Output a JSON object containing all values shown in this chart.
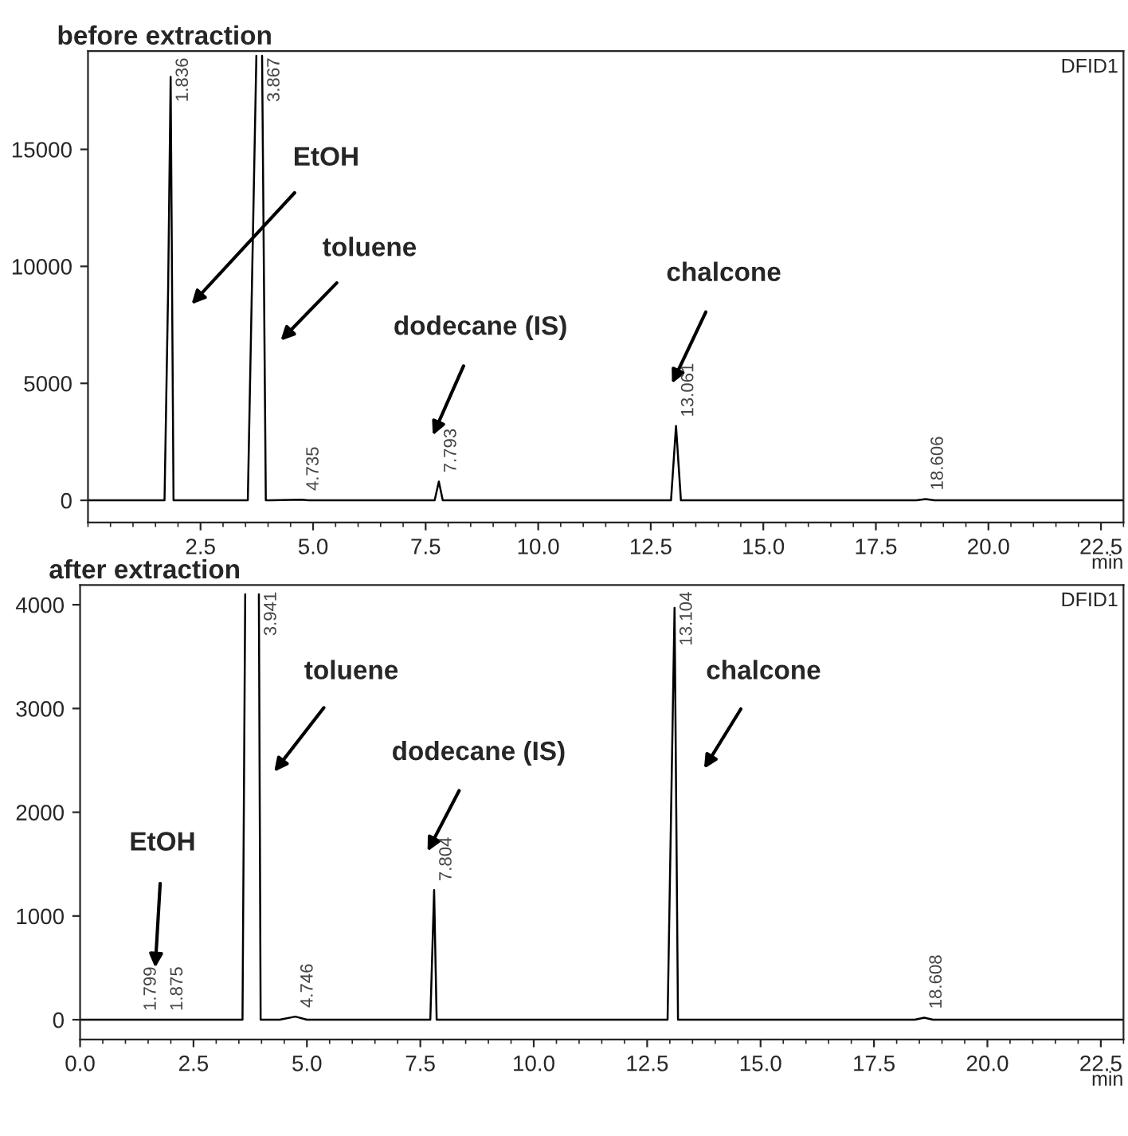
{
  "chart_data": [
    {
      "type": "line",
      "title": "before extraction",
      "xlabel": "min",
      "color": "#000000",
      "x": [
        0,
        1.7,
        1.78,
        1.836,
        1.9,
        2.0,
        3.55,
        3.74,
        3.75,
        3.85,
        3.867,
        3.95,
        4.05,
        4.735,
        4.9,
        7.7,
        7.793,
        7.88,
        12.8,
        12.95,
        13.061,
        13.17,
        13.3,
        18.4,
        18.606,
        18.8,
        23
      ],
      "values": [
        0,
        0,
        9000,
        18100,
        0,
        0,
        0,
        19000,
        null,
        null,
        19000,
        0,
        0,
        30,
        0,
        0,
        800,
        0,
        0,
        0,
        3180,
        0,
        0,
        0,
        50,
        0,
        0
      ],
      "xlim": [
        0,
        23
      ],
      "ylim": [
        -950,
        19200
      ],
      "xticks": [
        {
          "value": 2.5,
          "label": "2.5"
        },
        {
          "value": 5,
          "label": "5.0"
        },
        {
          "value": 7.5,
          "label": "7.5"
        },
        {
          "value": 10,
          "label": "10.0"
        },
        {
          "value": 12.5,
          "label": "12.5"
        },
        {
          "value": 15,
          "label": "15.0"
        },
        {
          "value": 17.5,
          "label": "17.5"
        },
        {
          "value": 20,
          "label": "20.0"
        },
        {
          "value": 22.5,
          "label": "22.5"
        }
      ],
      "yticks": [
        0,
        5000,
        10000,
        15000
      ],
      "grid": false,
      "annotations": [
        "EtOH",
        "toluene",
        "dodecane (IS)",
        "chalcone",
        {
          "text": "1.836",
          "x": 1.836,
          "y": 18100
        },
        {
          "text": "3.867",
          "x": 3.867,
          "y": 19000
        },
        {
          "text": "4.735",
          "x": 4.735,
          "y": 30
        },
        {
          "text": "7.793",
          "x": 7.793,
          "y": 800
        },
        {
          "text": "13.061",
          "x": 13.061,
          "y": 3180
        },
        {
          "text": "18.606",
          "x": 18.606,
          "y": 50
        },
        "DFID1"
      ]
    },
    {
      "type": "line",
      "title": "after extraction",
      "xlabel": "min",
      "color": "#000000",
      "x": [
        0,
        1.7,
        1.799,
        1.875,
        2.1,
        3.58,
        3.64,
        3.65,
        3.93,
        3.941,
        3.98,
        4.4,
        4.746,
        5.0,
        7.72,
        7.804,
        7.86,
        12.5,
        12.95,
        13.104,
        13.18,
        18.4,
        18.608,
        18.8,
        23
      ],
      "values": [
        0,
        0,
        0,
        0,
        0,
        0,
        4100,
        null,
        null,
        4100,
        0,
        0,
        30,
        0,
        0,
        1250,
        0,
        0,
        0,
        3970,
        0,
        0,
        20,
        0,
        0
      ],
      "xlim": [
        0,
        23
      ],
      "ylim": [
        -190,
        4190
      ],
      "xticks": [
        {
          "value": 0,
          "label": "0.0"
        },
        {
          "value": 2.5,
          "label": "2.5"
        },
        {
          "value": 5,
          "label": "5.0"
        },
        {
          "value": 7.5,
          "label": "7.5"
        },
        {
          "value": 10,
          "label": "10.0"
        },
        {
          "value": 12.5,
          "label": "12.5"
        },
        {
          "value": 15,
          "label": "15.0"
        },
        {
          "value": 17.5,
          "label": "17.5"
        },
        {
          "value": 20,
          "label": "20.0"
        },
        {
          "value": 22.5,
          "label": "22.5"
        }
      ],
      "yticks": [
        0,
        1000,
        2000,
        3000,
        4000
      ],
      "grid": false,
      "annotations": [
        "EtOH",
        "toluene",
        "dodecane (IS)",
        "chalcone",
        {
          "text": "1.799",
          "x": 1.799,
          "y": 0
        },
        {
          "text": "1.875",
          "x": 1.875,
          "y": 0
        },
        {
          "text": "3.941",
          "x": 3.941,
          "y": 4100
        },
        {
          "text": "4.746",
          "x": 4.746,
          "y": 30
        },
        {
          "text": "7.804",
          "x": 7.804,
          "y": 1250
        },
        {
          "text": "13.104",
          "x": 13.104,
          "y": 3970
        },
        {
          "text": "18.608",
          "x": 18.608,
          "y": 20
        },
        "DFID1"
      ]
    }
  ]
}
